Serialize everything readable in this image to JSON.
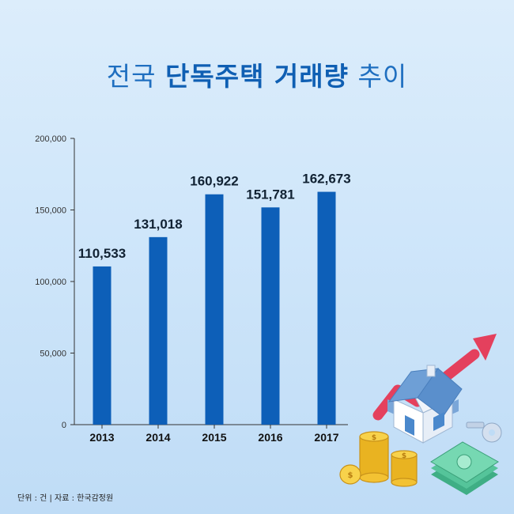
{
  "title": {
    "prefix": "전국",
    "emphasis": "단독주택 거래량",
    "suffix": "추이"
  },
  "footnote": "단위 : 건 | 자료 : 한국감정원",
  "colors": {
    "bar": "#0d5fb8",
    "title": "#1f6fc0",
    "arrow": "#e4405d"
  },
  "illustration": {
    "icons": [
      "house-icon",
      "rising-arrow-icon",
      "coin-stack-icon",
      "cash-stack-icon",
      "key-icon"
    ]
  },
  "chart_data": {
    "type": "bar",
    "categories": [
      "2013",
      "2014",
      "2015",
      "2016",
      "2017"
    ],
    "values": [
      110533,
      131018,
      160922,
      151781,
      162673
    ],
    "value_labels": [
      "110,533",
      "131,018",
      "160,922",
      "151,781",
      "162,673"
    ],
    "ylim": [
      0,
      200000
    ],
    "yticks": [
      0,
      50000,
      100000,
      150000,
      200000
    ],
    "ytick_labels": [
      "0",
      "50,000",
      "100,000",
      "150,000",
      "200,000"
    ],
    "grid": false,
    "legend": "none"
  }
}
